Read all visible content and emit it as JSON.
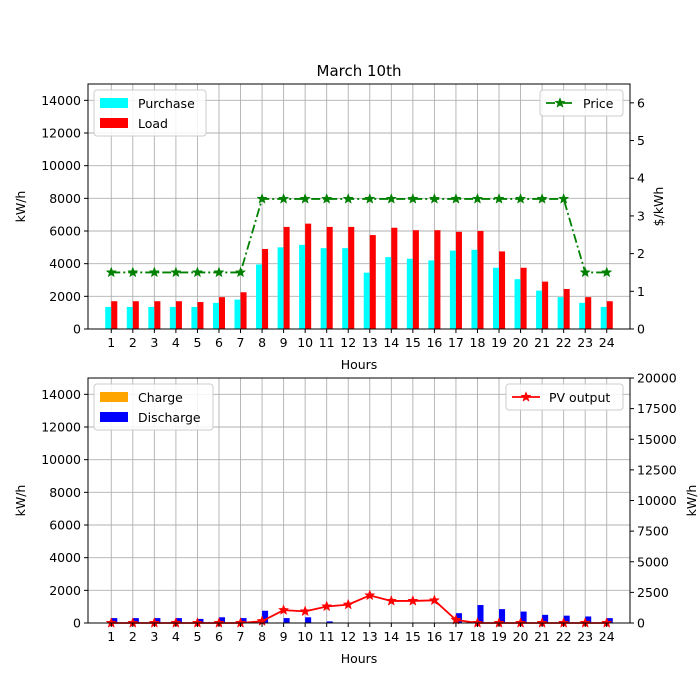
{
  "chart_data": [
    {
      "type": "bar",
      "title": "March 10th",
      "xlabel": "Hours",
      "ylabel": "kW/h",
      "ylim": [
        0,
        15000
      ],
      "y_ticks": [
        0,
        2000,
        4000,
        6000,
        8000,
        10000,
        12000,
        14000
      ],
      "categories": [
        "1",
        "2",
        "3",
        "4",
        "5",
        "6",
        "7",
        "8",
        "9",
        "10",
        "11",
        "12",
        "13",
        "14",
        "15",
        "16",
        "17",
        "18",
        "19",
        "20",
        "21",
        "22",
        "23",
        "24"
      ],
      "series": [
        {
          "name": "Purchase",
          "color": "#00ffff",
          "values": [
            1350,
            1350,
            1350,
            1350,
            1350,
            1600,
            1800,
            3950,
            5000,
            5150,
            4950,
            4950,
            3450,
            4400,
            4300,
            4200,
            4800,
            4850,
            3750,
            3050,
            2350,
            1950,
            1600,
            1350
          ]
        },
        {
          "name": "Load",
          "color": "#ff0000",
          "values": [
            1700,
            1700,
            1700,
            1700,
            1650,
            1950,
            2250,
            4900,
            6250,
            6450,
            6250,
            6250,
            5750,
            6200,
            6050,
            6050,
            5950,
            6000,
            4750,
            3750,
            2900,
            2450,
            1950,
            1700
          ]
        }
      ],
      "y2label": "$/kWh",
      "y2lim": [
        0,
        6.5
      ],
      "y2_ticks": [
        0,
        1,
        2,
        3,
        4,
        5,
        6
      ],
      "line_series": [
        {
          "name": "Price",
          "color": "#008000",
          "style": "dash-dot",
          "marker": "star",
          "values": [
            1.5,
            1.5,
            1.5,
            1.5,
            1.5,
            1.5,
            1.5,
            3.45,
            3.45,
            3.45,
            3.45,
            3.45,
            3.45,
            3.45,
            3.45,
            3.45,
            3.45,
            3.45,
            3.45,
            3.45,
            3.45,
            3.45,
            1.5,
            1.5
          ]
        }
      ],
      "grid": true,
      "legend_bars": "upper-left",
      "legend_line": "upper-right"
    },
    {
      "type": "bar",
      "xlabel": "Hours",
      "ylabel": "kW/h",
      "ylim": [
        0,
        15000
      ],
      "y_ticks": [
        0,
        2000,
        4000,
        6000,
        8000,
        10000,
        12000,
        14000
      ],
      "categories": [
        "1",
        "2",
        "3",
        "4",
        "5",
        "6",
        "7",
        "8",
        "9",
        "10",
        "11",
        "12",
        "13",
        "14",
        "15",
        "16",
        "17",
        "18",
        "19",
        "20",
        "21",
        "22",
        "23",
        "24"
      ],
      "series": [
        {
          "name": "Charge",
          "color": "#ffa500",
          "values": [
            0,
            0,
            0,
            0,
            0,
            0,
            0,
            0,
            0,
            0,
            0,
            0,
            0,
            0,
            0,
            0,
            0,
            0,
            0,
            0,
            0,
            0,
            0,
            0
          ]
        },
        {
          "name": "Discharge",
          "color": "#0000ff",
          "values": [
            300,
            300,
            300,
            300,
            250,
            350,
            300,
            750,
            300,
            350,
            100,
            0,
            0,
            0,
            0,
            0,
            600,
            1100,
            850,
            700,
            500,
            450,
            400,
            300
          ]
        }
      ],
      "y2label": "kW/h",
      "y2lim": [
        0,
        20000
      ],
      "y2_ticks": [
        0,
        2500,
        5000,
        7500,
        10000,
        12500,
        15000,
        17500,
        20000
      ],
      "line_series": [
        {
          "name": "PV output",
          "color": "#ff0000",
          "style": "solid",
          "marker": "star",
          "values": [
            0,
            0,
            0,
            0,
            0,
            0,
            0,
            150,
            1050,
            950,
            1350,
            1500,
            2250,
            1800,
            1800,
            1850,
            250,
            0,
            0,
            0,
            0,
            0,
            0,
            0
          ]
        }
      ],
      "grid": true,
      "legend_bars": "upper-left",
      "legend_line": "upper-right"
    }
  ]
}
